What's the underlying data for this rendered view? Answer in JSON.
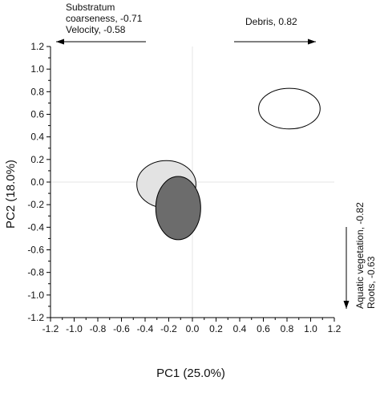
{
  "chart_data": {
    "type": "scatter",
    "title": "",
    "xlabel": "PC1 (25.0%)",
    "ylabel": "PC2 (18.0%)",
    "xlim": [
      -1.2,
      1.2
    ],
    "ylim": [
      -1.2,
      1.2
    ],
    "xticks": [
      "-1.2",
      "-1.0",
      "-0.8",
      "-0.6",
      "-0.4",
      "-0.2",
      "0.0",
      "0.2",
      "0.4",
      "0.6",
      "0.8",
      "1.0",
      "1.2"
    ],
    "yticks": [
      "1.2",
      "1.0",
      "0.8",
      "0.6",
      "0.4",
      "0.2",
      "0.0",
      "-0.2",
      "-0.4",
      "-0.6",
      "-0.8",
      "-1.0",
      "-1.2"
    ],
    "grid": false,
    "reference_lines": {
      "x": 0.0,
      "y": 0.0,
      "color": "#e6e6e6"
    },
    "ellipses": [
      {
        "cx": 0.82,
        "cy": 0.65,
        "rx": 0.26,
        "ry": 0.18,
        "fill": "#ffffff",
        "stroke": "#000000"
      },
      {
        "cx": -0.22,
        "cy": -0.02,
        "rx": 0.25,
        "ry": 0.21,
        "fill": "#e3e3e3",
        "stroke": "#000000"
      },
      {
        "cx": -0.12,
        "cy": -0.23,
        "rx": 0.19,
        "ry": 0.28,
        "fill": "#6c6c6c",
        "stroke": "#000000"
      }
    ],
    "loading_arrows": {
      "left": {
        "lines": [
          "Substratum",
          "coarseness, -0.71",
          "Velocity, -0.58"
        ]
      },
      "right": {
        "lines": [
          "Debris, 0.82"
        ]
      },
      "down": {
        "lines": [
          "Aquatic vegetation, -0.82",
          "Roots, -0.63"
        ]
      }
    }
  }
}
